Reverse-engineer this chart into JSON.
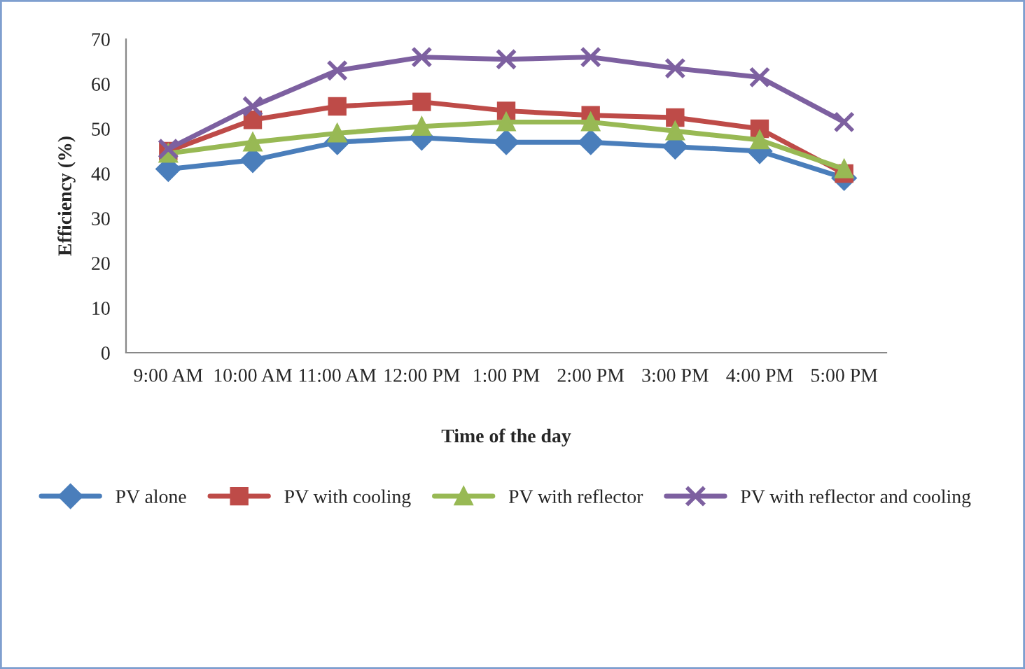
{
  "chart_data": {
    "type": "line",
    "xlabel": "Time of the day",
    "ylabel": "Efficiency (%)",
    "categories": [
      "9:00 AM",
      "10:00 AM",
      "11:00 AM",
      "12:00 PM",
      "1:00 PM",
      "2:00 PM",
      "3:00 PM",
      "4:00 PM",
      "5:00 PM"
    ],
    "series": [
      {
        "name": "PV alone",
        "color": "#4a7ebb",
        "marker": "diamond",
        "values": [
          41,
          43,
          47,
          48,
          47,
          47,
          46,
          45,
          39
        ]
      },
      {
        "name": "PV with cooling",
        "color": "#be4b48",
        "marker": "square",
        "values": [
          45,
          52,
          55,
          56,
          54,
          53,
          52.5,
          50,
          40
        ]
      },
      {
        "name": "PV with reflector",
        "color": "#98b954",
        "marker": "triangle",
        "values": [
          44.5,
          47,
          49,
          50.5,
          51.5,
          51.5,
          49.5,
          47.5,
          41
        ]
      },
      {
        "name": "PV with reflector and cooling",
        "color": "#7d60a0",
        "marker": "cross",
        "values": [
          45.5,
          55,
          63,
          66,
          65.5,
          66,
          63.5,
          61.5,
          51.5
        ]
      }
    ],
    "ylim": [
      0,
      70
    ],
    "yticks": [
      0,
      10,
      20,
      30,
      40,
      50,
      60,
      70
    ],
    "grid": false,
    "legend": "bottom",
    "line_style": "solid"
  }
}
